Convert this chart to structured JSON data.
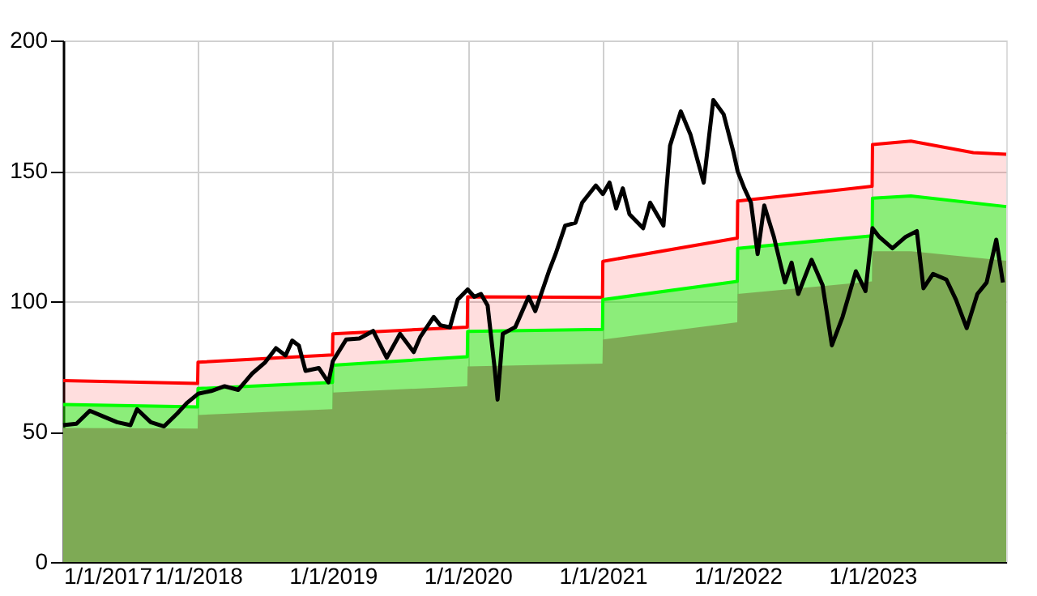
{
  "chart_data": {
    "type": "area",
    "xlim": [
      "2017-01-01",
      "2023-12-29"
    ],
    "xticks": [
      {
        "value": "2017-01-01",
        "label": "1/1/2017"
      },
      {
        "value": "2018-01-01",
        "label": "1/1/2018"
      },
      {
        "value": "2019-01-01",
        "label": "1/1/2019"
      },
      {
        "value": "2020-01-01",
        "label": "1/1/2020"
      },
      {
        "value": "2021-01-01",
        "label": "1/1/2021"
      },
      {
        "value": "2022-01-01",
        "label": "1/1/2022"
      },
      {
        "value": "2023-01-01",
        "label": "1/1/2023"
      }
    ],
    "ylim": [
      0,
      200
    ],
    "yticks": [
      0,
      50,
      100,
      150,
      200
    ],
    "grid": true,
    "series": [
      {
        "color": "#ff0000",
        "x": [
          "2017-01-01",
          "2017-12-31",
          "2018-01-01",
          "2018-12-31",
          "2019-01-01",
          "2019-12-31",
          "2020-01-01",
          "2020-12-31",
          "2021-01-01",
          "2021-12-31",
          "2022-01-01",
          "2022-12-31",
          "2023-01-01",
          "2023-04-15",
          "2023-10-01",
          "2023-12-29"
        ],
        "values": [
          69.6,
          68.5,
          76.6,
          79.4,
          87.5,
          90.1,
          101.7,
          101.5,
          115.3,
          124.2,
          138.4,
          144.1,
          160.1,
          161.4,
          157,
          156.4
        ]
      },
      {
        "color": "#00ff00",
        "x": [
          "2017-01-01",
          "2017-12-31",
          "2018-01-01",
          "2018-12-31",
          "2019-01-01",
          "2019-12-31",
          "2020-01-01",
          "2020-12-31",
          "2021-01-01",
          "2021-12-31",
          "2022-01-01",
          "2022-12-31",
          "2023-01-01",
          "2023-04-15",
          "2023-12-29"
        ],
        "values": [
          60.4,
          59.5,
          66.5,
          68.9,
          75.5,
          78.7,
          88.4,
          89.2,
          100.6,
          107.6,
          120.3,
          125.1,
          139.5,
          140.4,
          136.3
        ]
      },
      {
        "color": "#7eaa55",
        "x": [
          "2017-01-01",
          "2017-12-31",
          "2018-01-01",
          "2018-12-31",
          "2019-01-01",
          "2019-12-31",
          "2020-01-01",
          "2020-12-31",
          "2021-01-01",
          "2021-12-31",
          "2022-01-01",
          "2022-12-31",
          "2023-01-01",
          "2023-04-15",
          "2023-12-29"
        ],
        "values": [
          51.4,
          51.2,
          56.4,
          58.6,
          65,
          67.4,
          75,
          76.1,
          85.3,
          91.9,
          102.8,
          107.6,
          119.2,
          119.2,
          115.5
        ]
      },
      {
        "type": "line",
        "color": "#000000",
        "x": [
          "2017-01-01",
          "2017-02-06",
          "2017-03-14",
          "2017-04-20",
          "2017-05-27",
          "2017-07-02",
          "2017-07-20",
          "2017-08-26",
          "2017-10-01",
          "2017-11-06",
          "2017-12-02",
          "2018-01-01",
          "2018-02-06",
          "2018-03-14",
          "2018-04-20",
          "2018-05-27",
          "2018-07-02",
          "2018-07-31",
          "2018-08-26",
          "2018-09-13",
          "2018-10-01",
          "2018-10-19",
          "2018-11-24",
          "2018-12-20",
          "2019-01-01",
          "2019-02-06",
          "2019-03-14",
          "2019-04-20",
          "2019-05-27",
          "2019-07-02",
          "2019-08-08",
          "2019-08-26",
          "2019-10-01",
          "2019-10-19",
          "2019-11-14",
          "2019-12-05",
          "2020-01-01",
          "2020-01-19",
          "2020-02-06",
          "2020-02-24",
          "2020-03-14",
          "2020-03-22",
          "2020-04-05",
          "2020-05-09",
          "2020-06-14",
          "2020-07-02",
          "2020-08-08",
          "2020-08-26",
          "2020-09-21",
          "2020-10-19",
          "2020-11-06",
          "2020-12-13",
          "2021-01-01",
          "2021-01-19",
          "2021-02-06",
          "2021-02-24",
          "2021-03-14",
          "2021-04-20",
          "2021-05-09",
          "2021-06-14",
          "2021-07-02",
          "2021-07-31",
          "2021-08-26",
          "2021-10-01",
          "2021-10-27",
          "2021-11-24",
          "2021-12-20",
          "2022-01-01",
          "2022-01-19",
          "2022-02-06",
          "2022-02-24",
          "2022-03-14",
          "2022-04-09",
          "2022-05-09",
          "2022-05-27",
          "2022-06-14",
          "2022-07-20",
          "2022-08-19",
          "2022-09-13",
          "2022-10-12",
          "2022-11-17",
          "2022-12-13",
          "2023-01-01",
          "2023-01-19",
          "2023-02-24",
          "2023-04-01",
          "2023-05-01",
          "2023-05-19",
          "2023-06-14",
          "2023-07-20",
          "2023-08-15",
          "2023-09-13",
          "2023-10-12",
          "2023-11-06",
          "2023-12-02",
          "2023-12-20"
        ],
        "values": [
          52.5,
          53,
          58,
          55.8,
          53.6,
          52.5,
          58.6,
          53.6,
          52,
          57,
          61,
          64.5,
          65.6,
          67.4,
          66,
          72.2,
          76.6,
          82,
          79.2,
          84.9,
          83,
          73.3,
          74.4,
          68.9,
          77,
          85.3,
          85.7,
          88.6,
          78.3,
          87.5,
          80.5,
          86.4,
          94,
          90.8,
          90,
          100.6,
          104.5,
          101.7,
          102.8,
          98.4,
          74.4,
          62.3,
          87.5,
          90.1,
          101.7,
          96.2,
          111.5,
          118.1,
          129,
          130.1,
          137.8,
          144.4,
          141.1,
          145.5,
          135.6,
          143.3,
          133.4,
          128,
          137.8,
          129,
          159.7,
          172.8,
          164,
          145.5,
          177.2,
          171.7,
          157.5,
          149.8,
          143.3,
          137.8,
          118.1,
          136.7,
          124.7,
          107.2,
          114.8,
          102.8,
          115.9,
          106.1,
          83.1,
          94,
          111.5,
          103.9,
          128,
          124.7,
          120.3,
          124.7,
          126.9,
          105,
          110.5,
          108.3,
          100.6,
          89.7,
          102.8,
          107.2,
          123.6,
          107.2
        ]
      }
    ]
  }
}
